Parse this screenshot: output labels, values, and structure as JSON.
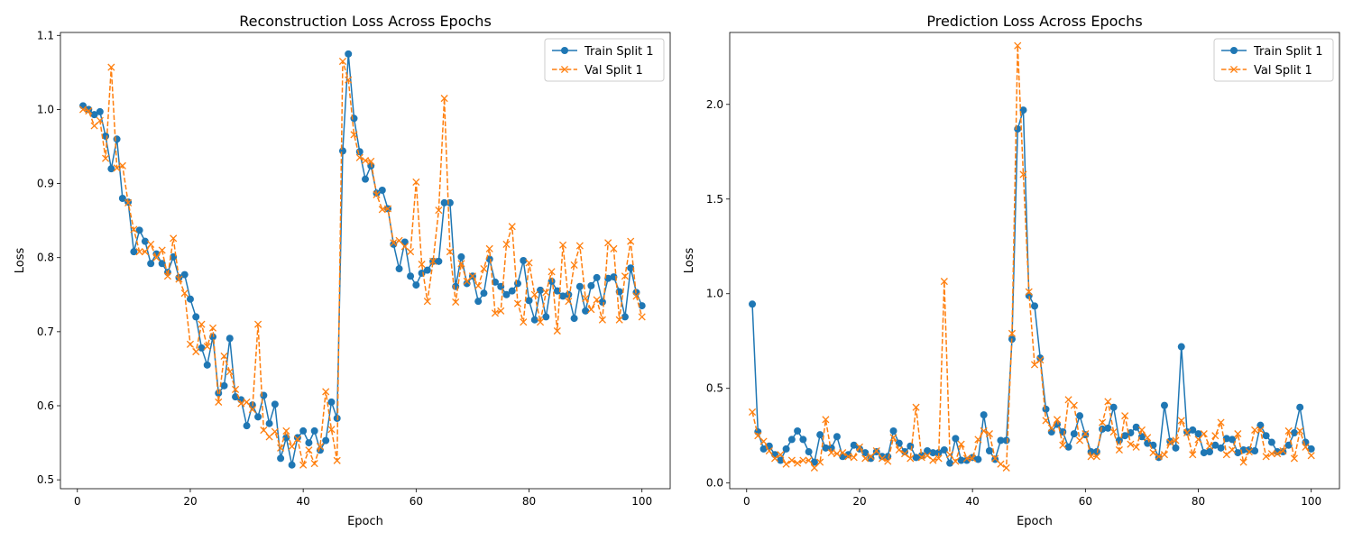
{
  "chart_data": [
    {
      "type": "line",
      "title": "Reconstruction Loss Across Epochs",
      "xlabel": "Epoch",
      "ylabel": "Loss",
      "xlim": [
        -3,
        105
      ],
      "ylim": [
        0.488,
        1.104
      ],
      "xticks": [
        0,
        20,
        40,
        60,
        80,
        100
      ],
      "yticks": [
        0.5,
        0.6,
        0.7,
        0.8,
        0.9,
        1.0,
        1.1
      ],
      "ytick_decimals": 1,
      "grid": false,
      "legend_position": "top-right",
      "series": [
        {
          "name": "Train Split 1",
          "color": "#1f77b4",
          "style": "solid",
          "marker": "circle",
          "values": [
            1.005,
            1.0,
            0.993,
            0.997,
            0.964,
            0.92,
            0.96,
            0.88,
            0.875,
            0.808,
            0.837,
            0.822,
            0.792,
            0.805,
            0.792,
            0.78,
            0.801,
            0.773,
            0.777,
            0.744,
            0.72,
            0.678,
            0.655,
            0.693,
            0.617,
            0.627,
            0.691,
            0.612,
            0.608,
            0.573,
            0.601,
            0.585,
            0.614,
            0.576,
            0.602,
            0.529,
            0.557,
            0.52,
            0.557,
            0.566,
            0.55,
            0.566,
            0.54,
            0.553,
            0.605,
            0.583,
            0.944,
            1.075,
            0.988,
            0.943,
            0.906,
            0.924,
            0.887,
            0.891,
            0.866,
            0.818,
            0.785,
            0.821,
            0.775,
            0.763,
            0.779,
            0.783,
            0.795,
            0.795,
            0.874,
            0.874,
            0.761,
            0.801,
            0.765,
            0.775,
            0.741,
            0.752,
            0.798,
            0.767,
            0.761,
            0.75,
            0.755,
            0.765,
            0.796,
            0.742,
            0.716,
            0.756,
            0.72,
            0.768,
            0.755,
            0.748,
            0.75,
            0.718,
            0.761,
            0.728,
            0.762,
            0.773,
            0.74,
            0.772,
            0.774,
            0.754,
            0.72,
            0.786,
            0.753,
            0.735
          ]
        },
        {
          "name": "Val Split 1",
          "color": "#ff7f0e",
          "style": "dashed",
          "marker": "x",
          "values": [
            1.0,
            0.998,
            0.978,
            0.985,
            0.934,
            1.057,
            0.921,
            0.924,
            0.874,
            0.838,
            0.808,
            0.808,
            0.818,
            0.8,
            0.81,
            0.775,
            0.826,
            0.771,
            0.752,
            0.683,
            0.673,
            0.71,
            0.68,
            0.705,
            0.605,
            0.667,
            0.646,
            0.622,
            0.603,
            0.605,
            0.595,
            0.71,
            0.567,
            0.558,
            0.565,
            0.543,
            0.566,
            0.545,
            0.555,
            0.52,
            0.54,
            0.522,
            0.545,
            0.619,
            0.568,
            0.526,
            1.065,
            1.04,
            0.966,
            0.935,
            0.931,
            0.93,
            0.885,
            0.865,
            0.866,
            0.82,
            0.823,
            0.815,
            0.808,
            0.902,
            0.791,
            0.741,
            0.795,
            0.864,
            1.015,
            0.808,
            0.74,
            0.792,
            0.768,
            0.775,
            0.762,
            0.785,
            0.812,
            0.725,
            0.728,
            0.818,
            0.842,
            0.738,
            0.713,
            0.793,
            0.75,
            0.713,
            0.753,
            0.781,
            0.701,
            0.817,
            0.741,
            0.79,
            0.816,
            0.745,
            0.73,
            0.743,
            0.716,
            0.82,
            0.812,
            0.716,
            0.775,
            0.822,
            0.748,
            0.72
          ]
        }
      ]
    },
    {
      "type": "line",
      "title": "Prediction Loss Across Epochs",
      "xlabel": "Epoch",
      "ylabel": "Loss",
      "xlim": [
        -3,
        105
      ],
      "ylim": [
        -0.03,
        2.38
      ],
      "xticks": [
        0,
        20,
        40,
        60,
        80,
        100
      ],
      "yticks": [
        0.0,
        0.5,
        1.0,
        1.5,
        2.0
      ],
      "ytick_decimals": 1,
      "grid": false,
      "legend_position": "top-right",
      "series": [
        {
          "name": "Train Split 1",
          "color": "#1f77b4",
          "style": "solid",
          "marker": "circle",
          "values": [
            0.945,
            0.27,
            0.18,
            0.195,
            0.15,
            0.12,
            0.18,
            0.23,
            0.275,
            0.23,
            0.165,
            0.11,
            0.255,
            0.185,
            0.185,
            0.245,
            0.14,
            0.15,
            0.2,
            0.18,
            0.16,
            0.13,
            0.165,
            0.14,
            0.14,
            0.275,
            0.21,
            0.165,
            0.195,
            0.135,
            0.145,
            0.17,
            0.16,
            0.16,
            0.175,
            0.105,
            0.235,
            0.12,
            0.12,
            0.135,
            0.125,
            0.36,
            0.17,
            0.125,
            0.225,
            0.225,
            0.76,
            1.87,
            1.97,
            0.99,
            0.935,
            0.66,
            0.39,
            0.27,
            0.31,
            0.27,
            0.19,
            0.26,
            0.355,
            0.255,
            0.165,
            0.165,
            0.285,
            0.29,
            0.4,
            0.225,
            0.25,
            0.265,
            0.295,
            0.245,
            0.21,
            0.2,
            0.135,
            0.41,
            0.22,
            0.185,
            0.72,
            0.27,
            0.28,
            0.26,
            0.16,
            0.165,
            0.2,
            0.185,
            0.235,
            0.23,
            0.16,
            0.175,
            0.175,
            0.17,
            0.305,
            0.25,
            0.215,
            0.165,
            0.165,
            0.2,
            0.265,
            0.4,
            0.215,
            0.18
          ]
        },
        {
          "name": "Val Split 1",
          "color": "#ff7f0e",
          "style": "dashed",
          "marker": "x",
          "values": [
            0.375,
            0.25,
            0.22,
            0.17,
            0.13,
            0.15,
            0.1,
            0.12,
            0.105,
            0.12,
            0.12,
            0.08,
            0.11,
            0.335,
            0.16,
            0.155,
            0.16,
            0.14,
            0.135,
            0.19,
            0.13,
            0.14,
            0.17,
            0.13,
            0.115,
            0.24,
            0.175,
            0.155,
            0.13,
            0.4,
            0.135,
            0.145,
            0.12,
            0.13,
            1.065,
            0.15,
            0.115,
            0.205,
            0.13,
            0.13,
            0.23,
            0.275,
            0.26,
            0.13,
            0.1,
            0.08,
            0.79,
            2.31,
            1.63,
            1.01,
            0.625,
            0.65,
            0.33,
            0.29,
            0.335,
            0.2,
            0.44,
            0.41,
            0.225,
            0.26,
            0.14,
            0.14,
            0.32,
            0.43,
            0.27,
            0.175,
            0.355,
            0.205,
            0.19,
            0.28,
            0.24,
            0.16,
            0.14,
            0.15,
            0.215,
            0.225,
            0.33,
            0.265,
            0.15,
            0.23,
            0.26,
            0.195,
            0.25,
            0.32,
            0.15,
            0.175,
            0.26,
            0.11,
            0.165,
            0.28,
            0.28,
            0.14,
            0.155,
            0.155,
            0.17,
            0.275,
            0.13,
            0.275,
            0.19,
            0.145
          ]
        }
      ]
    }
  ]
}
